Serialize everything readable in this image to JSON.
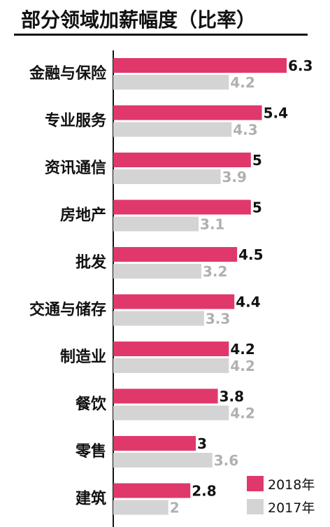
{
  "chart_data": {
    "type": "bar",
    "orientation": "horizontal",
    "title": "部分领域加薪幅度（比率）",
    "categories": [
      "金融与保险",
      "专业服务",
      "资讯通信",
      "房地产",
      "批发",
      "交通与储存",
      "制造业",
      "餐饮",
      "零售",
      "建筑"
    ],
    "series": [
      {
        "name": "2018年",
        "values": [
          6.3,
          5.4,
          5,
          5,
          4.5,
          4.4,
          4.2,
          3.8,
          3,
          2.8
        ],
        "color": "#e0386a",
        "label_color": "#111111"
      },
      {
        "name": "2017年",
        "values": [
          4.2,
          4.3,
          3.9,
          3.1,
          3.2,
          3.3,
          4.2,
          4.2,
          3.6,
          2
        ],
        "color": "#d4d4d4",
        "label_color": "#b0b0b0"
      }
    ],
    "value_labels": [
      [
        "6.3",
        "5.4",
        "5",
        "5",
        "4.5",
        "4.4",
        "4.2",
        "3.8",
        "3",
        "2.8"
      ],
      [
        "4.2",
        "4.3",
        "3.9",
        "3.1",
        "3.2",
        "3.3",
        "4.2",
        "4.2",
        "3.6",
        "2"
      ]
    ],
    "legend_position": "bottom-right",
    "grid": false,
    "xlim": [
      0,
      6.3
    ]
  }
}
